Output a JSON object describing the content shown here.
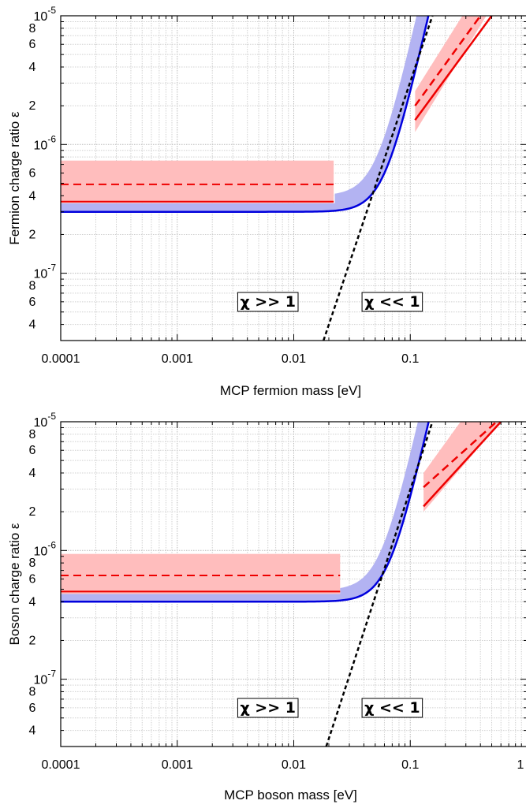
{
  "chart_data": [
    {
      "type": "line",
      "xlabel": "MCP fermion mass [eV]",
      "ylabel": "Fermion charge ratio ε",
      "xscale": "log",
      "yscale": "log",
      "xlim": [
        0.0001,
        1
      ],
      "ylim": [
        3e-08,
        1e-05
      ],
      "grid": true,
      "x_ticks": [
        {
          "value": 0.0001,
          "label": "0.0001"
        },
        {
          "value": 0.001,
          "label": "0.001"
        },
        {
          "value": 0.01,
          "label": "0.01"
        },
        {
          "value": 0.1,
          "label": "0.1"
        }
      ],
      "y_ticks": [
        {
          "value": 1e-05,
          "mant": "10",
          "exp": "-5"
        },
        {
          "value": 8e-06,
          "label": "8"
        },
        {
          "value": 6e-06,
          "label": "6"
        },
        {
          "value": 4e-06,
          "label": "4"
        },
        {
          "value": 2e-06,
          "label": "2"
        },
        {
          "value": 1e-06,
          "mant": "10",
          "exp": "-6"
        },
        {
          "value": 6e-07,
          "label": "6"
        },
        {
          "value": 4e-07,
          "label": "4"
        },
        {
          "value": 2e-07,
          "label": "2"
        },
        {
          "value": 1e-07,
          "mant": "10",
          "exp": "-7"
        },
        {
          "value": 8e-08,
          "label": "8"
        },
        {
          "value": 6e-08,
          "label": "6"
        },
        {
          "value": 4e-08,
          "label": "4"
        }
      ],
      "blue_curve": {
        "base": 3e-07,
        "m0": 0.06,
        "power": 4,
        "color": "#0000dd"
      },
      "blue_band": {
        "offset": 0.02,
        "power": 4,
        "base_top": 4e-07,
        "m0": 0.06,
        "start": 0.0225,
        "color": "#b3b3f2"
      },
      "red_left": {
        "x_range": [
          0.0001,
          0.022
        ],
        "band": [
          3.5e-07,
          7.5e-07
        ],
        "solid": 3.6e-07,
        "dashed": 4.9e-07
      },
      "red_right": {
        "band_points": [
          [
            0.11,
            2.6e-06
          ],
          [
            0.28,
            1e-05
          ],
          [
            0.45,
            1e-05
          ],
          [
            0.11,
            1.25e-06
          ]
        ],
        "solid_line": [
          [
            0.11,
            1.55e-06
          ],
          [
            0.5,
            1e-05
          ]
        ],
        "dashed_line": [
          [
            0.11,
            2e-06
          ],
          [
            0.4,
            1e-05
          ]
        ]
      },
      "red_color": "#ee0000",
      "red_band_color": "#ffbdbd",
      "black_dashed": [
        [
          0.018,
          3e-08
        ],
        [
          0.155,
          1e-05
        ]
      ],
      "annotations": [
        {
          "text": "χ >> 1",
          "x": 0.006,
          "y": 5.5e-08
        },
        {
          "text": "χ << 1",
          "x": 0.07,
          "y": 5.5e-08
        }
      ]
    },
    {
      "type": "line",
      "xlabel": "MCP boson mass [eV]",
      "ylabel": "Boson charge ratio ε",
      "xscale": "log",
      "yscale": "log",
      "xlim": [
        0.0001,
        1
      ],
      "ylim": [
        3e-08,
        1e-05
      ],
      "grid": true,
      "x_ticks": [
        {
          "value": 0.0001,
          "label": "0.0001"
        },
        {
          "value": 0.001,
          "label": "0.001"
        },
        {
          "value": 0.01,
          "label": "0.01"
        },
        {
          "value": 0.1,
          "label": "0.1"
        },
        {
          "value": 1,
          "label": "1"
        }
      ],
      "y_ticks": [
        {
          "value": 1e-05,
          "mant": "10",
          "exp": "-5"
        },
        {
          "value": 8e-06,
          "label": "8"
        },
        {
          "value": 6e-06,
          "label": "6"
        },
        {
          "value": 4e-06,
          "label": "4"
        },
        {
          "value": 2e-06,
          "label": "2"
        },
        {
          "value": 1e-06,
          "mant": "10",
          "exp": "-6"
        },
        {
          "value": 8e-07,
          "label": "8"
        },
        {
          "value": 6e-07,
          "label": "6"
        },
        {
          "value": 4e-07,
          "label": "4"
        },
        {
          "value": 2e-07,
          "label": "2"
        },
        {
          "value": 1e-07,
          "mant": "10",
          "exp": "-7"
        },
        {
          "value": 8e-08,
          "label": "8"
        },
        {
          "value": 6e-08,
          "label": "6"
        },
        {
          "value": 4e-08,
          "label": "4"
        }
      ],
      "blue_curve": {
        "base": 4e-07,
        "m0": 0.065,
        "power": 4,
        "color": "#0000dd"
      },
      "blue_band": {
        "offset": 0.02,
        "power": 4,
        "base_top": 4.9e-07,
        "m0": 0.065,
        "start": 0.025,
        "color": "#b3b3f2"
      },
      "red_left": {
        "x_range": [
          0.0001,
          0.025
        ],
        "band": [
          4.6e-07,
          9.4e-07
        ],
        "solid": 4.8e-07,
        "dashed": 6.4e-07
      },
      "red_right": {
        "band_points": [
          [
            0.13,
            4e-06
          ],
          [
            0.27,
            1e-05
          ],
          [
            0.6,
            1e-05
          ],
          [
            0.13,
            2e-06
          ]
        ],
        "solid_line": [
          [
            0.13,
            2.2e-06
          ],
          [
            0.6,
            1e-05
          ]
        ],
        "dashed_line": [
          [
            0.13,
            3.1e-06
          ],
          [
            0.55,
            1e-05
          ]
        ]
      },
      "red_color": "#ee0000",
      "red_band_color": "#ffbdbd",
      "black_dashed": [
        [
          0.019,
          3e-08
        ],
        [
          0.155,
          1e-05
        ]
      ],
      "annotations": [
        {
          "text": "χ >> 1",
          "x": 0.006,
          "y": 5.5e-08
        },
        {
          "text": "χ << 1",
          "x": 0.07,
          "y": 5.5e-08
        }
      ]
    }
  ]
}
